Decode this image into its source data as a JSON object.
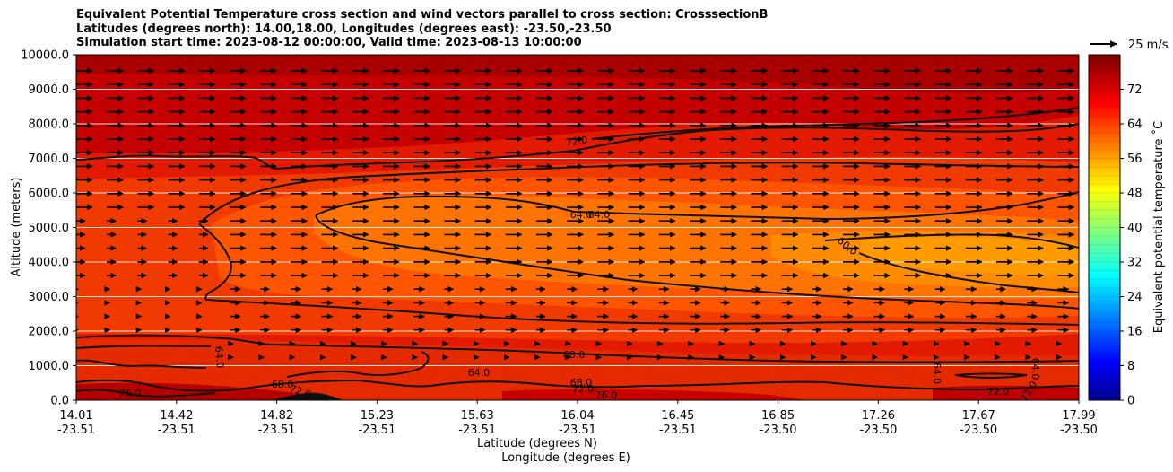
{
  "chart_data": {
    "type": "heatmap",
    "title_lines": [
      "Equivalent Potential Temperature cross section and wind vectors parallel to cross section: CrosssectionB",
      "Latitudes (degrees north): 14.00,18.00, Longitudes (degrees east): -23.50,-23.50",
      "Simulation start time: 2023-08-12 00:00:00, Valid time: 2023-08-13 10:00:00"
    ],
    "ylabel": "Altitude (meters)",
    "xlabel_lat": "Latitude (degrees N)",
    "xlabel_lon": "Longitude (degrees E)",
    "ylim": [
      0,
      10000
    ],
    "y_ticks": [
      "0.0",
      "1000.0",
      "2000.0",
      "3000.0",
      "4000.0",
      "5000.0",
      "6000.0",
      "7000.0",
      "8000.0",
      "9000.0",
      "10000.0"
    ],
    "x_ticks": [
      {
        "lat": "14.01",
        "lon": "-23.51"
      },
      {
        "lat": "14.42",
        "lon": "-23.51"
      },
      {
        "lat": "14.82",
        "lon": "-23.51"
      },
      {
        "lat": "15.23",
        "lon": "-23.51"
      },
      {
        "lat": "15.63",
        "lon": "-23.51"
      },
      {
        "lat": "16.04",
        "lon": "-23.51"
      },
      {
        "lat": "16.45",
        "lon": "-23.51"
      },
      {
        "lat": "16.85",
        "lon": "-23.50"
      },
      {
        "lat": "17.26",
        "lon": "-23.50"
      },
      {
        "lat": "17.67",
        "lon": "-23.50"
      },
      {
        "lat": "17.99",
        "lon": "-23.50"
      }
    ],
    "colorbar": {
      "label": "Equivalent potential temperature ˚C",
      "ticks": [
        "0",
        "8",
        "16",
        "24",
        "32",
        "40",
        "48",
        "56",
        "64",
        "72"
      ],
      "range": [
        0,
        80
      ],
      "colormap": "jet"
    },
    "vector_key": {
      "label": "25 m/s"
    },
    "contour_labels": [
      "72.0",
      "64.0",
      "64.0",
      "60.0",
      "64.0",
      "68.0",
      "64.0",
      "68.0",
      "72.0",
      "76.0",
      "76.0",
      "72.0",
      "68.0",
      "64.0",
      "64.0",
      "72.0",
      "72.0"
    ],
    "grid": true
  }
}
